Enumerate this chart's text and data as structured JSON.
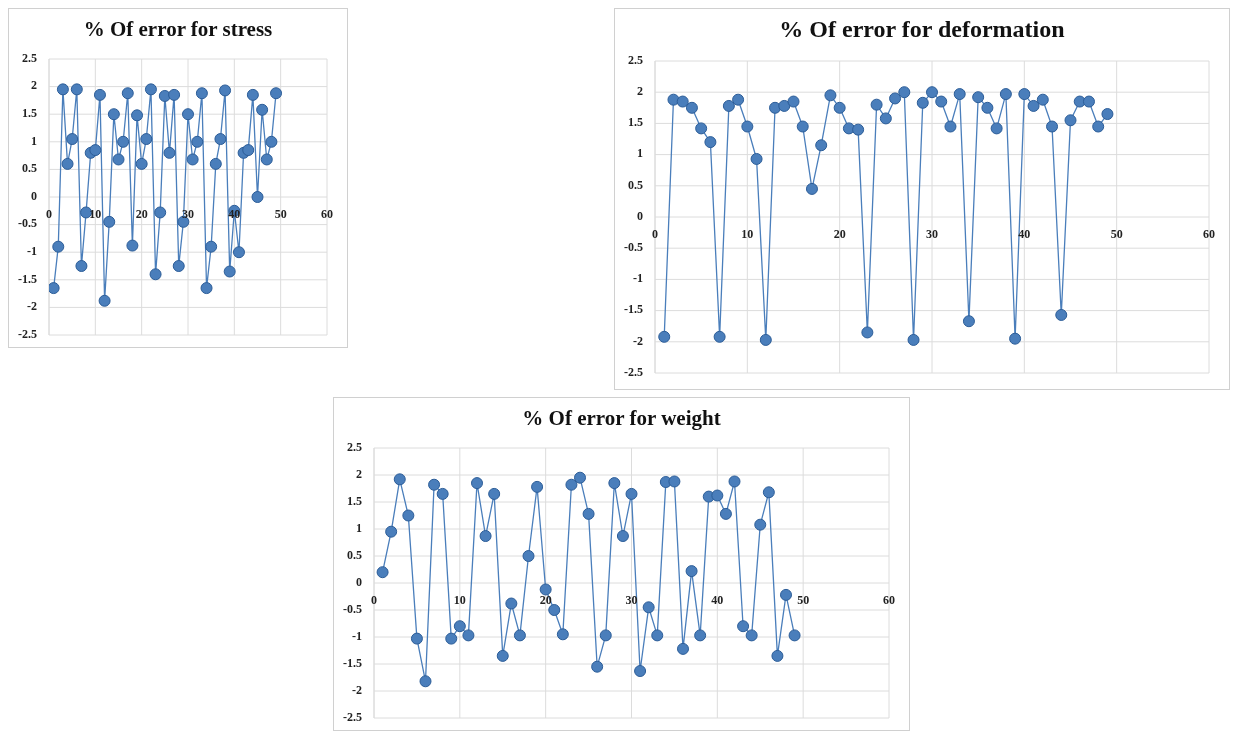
{
  "chart_data": [
    {
      "type": "line",
      "title": "% Of error for stress",
      "x": [
        1,
        2,
        3,
        4,
        5,
        6,
        7,
        8,
        9,
        10,
        11,
        12,
        13,
        14,
        15,
        16,
        17,
        18,
        19,
        20,
        21,
        22,
        23,
        24,
        25,
        26,
        27,
        28,
        29,
        30,
        31,
        32,
        33,
        34,
        35,
        36,
        37,
        38,
        39,
        40,
        41,
        42,
        43,
        44,
        45,
        46,
        47,
        48,
        49
      ],
      "series": [
        {
          "color": "#4a7ebb",
          "values": [
            -1.65,
            -0.9,
            1.95,
            0.6,
            1.05,
            1.95,
            -1.25,
            -0.28,
            0.8,
            0.85,
            1.85,
            -1.88,
            -0.45,
            1.5,
            0.68,
            1.0,
            1.88,
            -0.88,
            1.48,
            0.6,
            1.05,
            1.95,
            -1.4,
            -0.28,
            1.83,
            0.8,
            1.85,
            -1.25,
            -0.45,
            1.5,
            0.68,
            1.0,
            1.88,
            -1.65,
            -0.9,
            0.6,
            1.05,
            1.93,
            -1.35,
            -0.25,
            -1.0,
            0.8,
            0.85,
            1.85,
            0.0,
            1.58,
            0.68,
            1.0,
            1.88
          ]
        }
      ],
      "xlim": [
        0,
        60
      ],
      "xticks": [
        0,
        10,
        20,
        30,
        40,
        50,
        60
      ],
      "ylim": [
        -2.5,
        2.5
      ],
      "yticks": [
        -2.5,
        -2,
        -1.5,
        -1,
        -0.5,
        0,
        0.5,
        1,
        1.5,
        2,
        2.5
      ],
      "grid": true,
      "marker": "circle",
      "line_style": "solid"
    },
    {
      "type": "line",
      "title": "% Of error for deformation",
      "x": [
        1,
        2,
        3,
        4,
        5,
        6,
        7,
        8,
        9,
        10,
        11,
        12,
        13,
        14,
        15,
        16,
        17,
        18,
        19,
        20,
        21,
        22,
        23,
        24,
        25,
        26,
        27,
        28,
        29,
        30,
        31,
        32,
        33,
        34,
        35,
        36,
        37,
        38,
        39,
        40,
        41,
        42,
        43,
        44,
        45,
        46,
        47,
        48,
        49
      ],
      "series": [
        {
          "color": "#4a7ebb",
          "values": [
            -1.92,
            1.88,
            1.85,
            1.75,
            1.42,
            1.2,
            -1.92,
            1.78,
            1.88,
            1.45,
            0.93,
            -1.97,
            1.75,
            1.78,
            1.85,
            1.45,
            0.45,
            1.15,
            1.95,
            1.75,
            1.42,
            1.4,
            -1.85,
            1.8,
            1.58,
            1.9,
            2.0,
            -1.97,
            1.83,
            2.0,
            1.85,
            1.45,
            1.97,
            -1.67,
            1.92,
            1.75,
            1.42,
            1.97,
            -1.95,
            1.97,
            1.78,
            1.88,
            1.45,
            -1.57,
            1.55,
            1.85,
            1.85,
            1.45,
            1.65
          ]
        }
      ],
      "xlim": [
        0,
        60
      ],
      "xticks": [
        0,
        10,
        20,
        30,
        40,
        50,
        60
      ],
      "ylim": [
        -2.5,
        2.5
      ],
      "yticks": [
        -2.5,
        -2,
        -1.5,
        -1,
        -0.5,
        0,
        0.5,
        1,
        1.5,
        2,
        2.5
      ],
      "grid": true,
      "marker": "circle",
      "line_style": "solid"
    },
    {
      "type": "line",
      "title": "% Of error for weight",
      "x": [
        1,
        2,
        3,
        4,
        5,
        6,
        7,
        8,
        9,
        10,
        11,
        12,
        13,
        14,
        15,
        16,
        17,
        18,
        19,
        20,
        21,
        22,
        23,
        24,
        25,
        26,
        27,
        28,
        29,
        30,
        31,
        32,
        33,
        34,
        35,
        36,
        37,
        38,
        39,
        40,
        41,
        42,
        43,
        44,
        45,
        46,
        47,
        48,
        49
      ],
      "series": [
        {
          "color": "#4a7ebb",
          "values": [
            0.2,
            0.95,
            1.92,
            1.25,
            -1.03,
            -1.82,
            1.82,
            1.65,
            -1.03,
            -0.8,
            -0.97,
            1.85,
            0.87,
            1.65,
            -1.35,
            -0.38,
            -0.97,
            0.5,
            1.78,
            -0.12,
            -0.5,
            -0.95,
            1.82,
            1.95,
            1.28,
            -1.55,
            -0.97,
            1.85,
            0.87,
            1.65,
            -1.63,
            -0.45,
            -0.97,
            1.87,
            1.88,
            -1.22,
            0.22,
            -0.97,
            1.6,
            1.62,
            1.28,
            1.88,
            -0.8,
            -0.97,
            1.08,
            1.68,
            -1.35,
            -0.22,
            -0.97
          ]
        }
      ],
      "xlim": [
        0,
        60
      ],
      "xticks": [
        0,
        10,
        20,
        30,
        40,
        50,
        60
      ],
      "ylim": [
        -2.5,
        2.5
      ],
      "yticks": [
        -2.5,
        -2,
        -1.5,
        -1,
        -0.5,
        0,
        0.5,
        1,
        1.5,
        2,
        2.5
      ],
      "grid": true,
      "marker": "circle",
      "line_style": "solid"
    }
  ]
}
